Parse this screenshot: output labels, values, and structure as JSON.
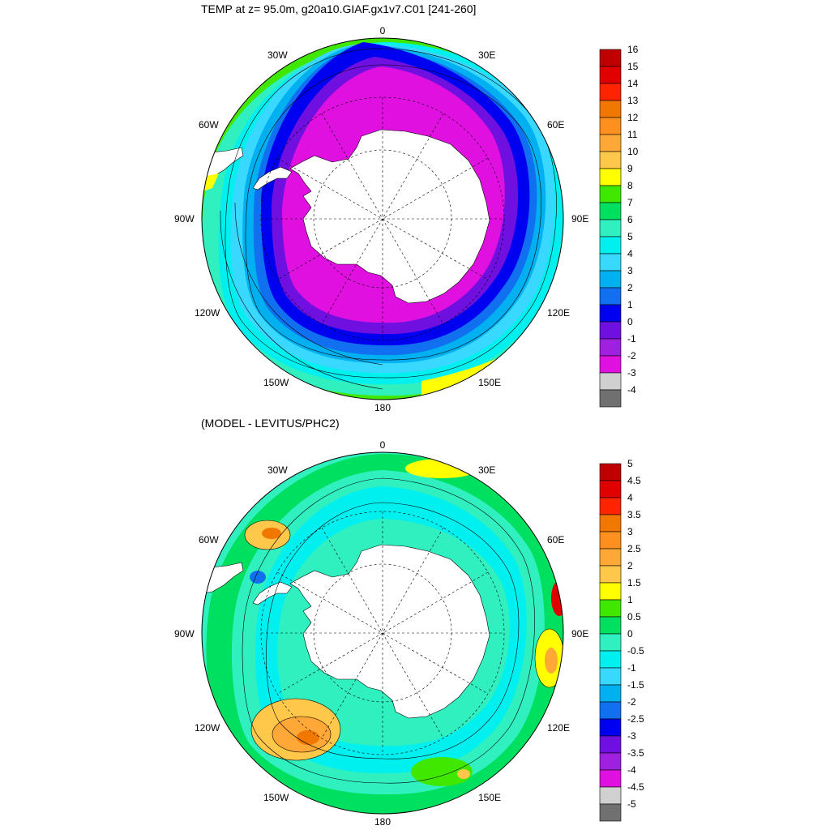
{
  "chart_data": [
    {
      "type": "polar-contour-map",
      "title": "TEMP at z=  95.0m, g20a10.GIAF.gx1v7.C01 [241-260]",
      "projection": "south-polar-stereographic",
      "longitude_labels": [
        "0",
        "30E",
        "60E",
        "90E",
        "120E",
        "150E",
        "180",
        "150W",
        "120W",
        "90W",
        "60W",
        "30W"
      ],
      "colorbar": {
        "levels": [
          "16",
          "15",
          "14",
          "13",
          "12",
          "11",
          "10",
          "9",
          "8",
          "7",
          "6",
          "5",
          "4",
          "3",
          "2",
          "1",
          "0",
          "-1",
          "-2",
          "-3",
          "-4"
        ],
        "colors": [
          "#c00000",
          "#e00000",
          "#ff2400",
          "#f07800",
          "#ff9020",
          "#ffa838",
          "#ffc84a",
          "#ffff00",
          "#40e800",
          "#00e060",
          "#30f0c0",
          "#00f0f0",
          "#38d8ff",
          "#00b0f0",
          "#1070f0",
          "#0000f0",
          "#7010e0",
          "#a020e0",
          "#e010e0",
          "#d0d0d0",
          "#707070"
        ]
      },
      "fields": {
        "antarctic_shelf": "-2 to -1",
        "inner_band": "-1 to 0",
        "polar_front": "0 to 2",
        "subantarctic": "3 to 6",
        "northern_edge": "6 to 9"
      }
    },
    {
      "type": "polar-contour-map",
      "title": "(MODEL - LEVITUS/PHC2)",
      "projection": "south-polar-stereographic",
      "longitude_labels": [
        "0",
        "30E",
        "60E",
        "90E",
        "120E",
        "150E",
        "180",
        "150W",
        "120W",
        "90W",
        "60W",
        "30W"
      ],
      "colorbar": {
        "levels": [
          "5",
          "4.5",
          "4",
          "3.5",
          "3",
          "2.5",
          "2",
          "1.5",
          "1",
          "0.5",
          "0",
          "-0.5",
          "-1",
          "-1.5",
          "-2",
          "-2.5",
          "-3",
          "-3.5",
          "-4",
          "-4.5",
          "-5"
        ],
        "colors": [
          "#c00000",
          "#e00000",
          "#ff2400",
          "#f07800",
          "#ff9020",
          "#ffa838",
          "#ffc84a",
          "#ffff00",
          "#40e800",
          "#00e060",
          "#30f0c0",
          "#00f0f0",
          "#38d8ff",
          "#00b0f0",
          "#1070f0",
          "#0000f0",
          "#7010e0",
          "#a020e0",
          "#e010e0",
          "#d0d0d0",
          "#707070"
        ]
      },
      "features": [
        {
          "lon": -135,
          "lat": -48,
          "value": 3.5
        },
        {
          "lon": 90,
          "lat": -43,
          "value": 4.5
        },
        {
          "lon": 100,
          "lat": -46,
          "value": 2.5
        },
        {
          "lon": -50,
          "lat": -42,
          "value": 2.5
        },
        {
          "lon": 150,
          "lat": -46,
          "value": 1.5
        },
        {
          "lon": 20,
          "lat": -40,
          "value": 1.0
        }
      ]
    }
  ]
}
